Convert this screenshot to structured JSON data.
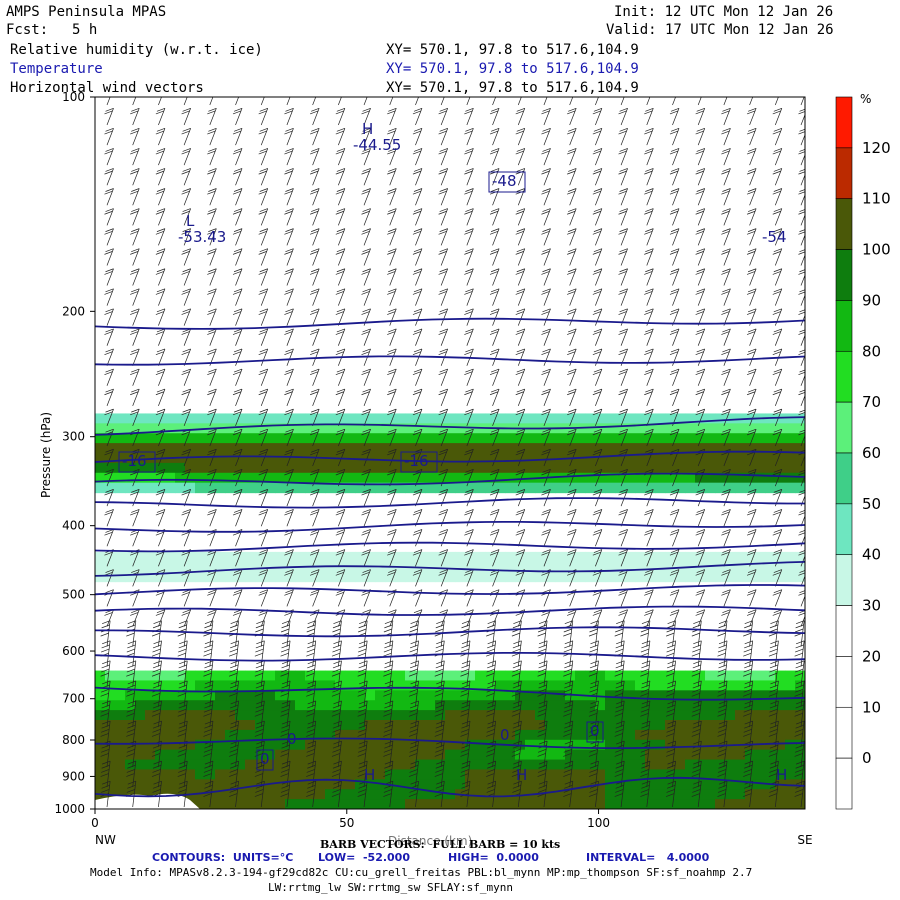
{
  "header": {
    "model": "AMPS Peninsula MPAS",
    "fcst_label": "Fcst:",
    "fcst_value": "5 h",
    "init": "Init: 12 UTC Mon 12 Jan 26",
    "valid": "Valid: 17 UTC Mon 12 Jan 26",
    "fields": [
      {
        "name": "Relative humidity (w.r.t. ice)",
        "xy": "XY= 570.1, 97.8 to 517.6,104.9",
        "color": "#000000"
      },
      {
        "name": "Temperature",
        "xy": "XY= 570.1, 97.8 to 517.6,104.9",
        "color": "#1a1ab0"
      },
      {
        "name": "Horizontal wind vectors",
        "xy": "XY= 570.1, 97.8 to 517.6,104.9",
        "color": "#000000"
      }
    ]
  },
  "chart_data": {
    "type": "heatmap",
    "ylabel": "Pressure (hPa)",
    "xlabel": "Distance (km)",
    "x_ticks": [
      0,
      50,
      100
    ],
    "xlim": [
      0,
      141
    ],
    "y_ticks": [
      100,
      200,
      300,
      400,
      500,
      600,
      700,
      800,
      900,
      1000
    ],
    "ylim": [
      1000,
      100
    ],
    "y_scale": "log",
    "x_end_labels": {
      "left": "NW",
      "right": "SE"
    },
    "colorbar": {
      "unit": "%",
      "ticks": [
        0,
        10,
        20,
        30,
        40,
        50,
        60,
        70,
        80,
        90,
        100,
        110,
        120
      ],
      "levels": [
        {
          "lo": -10,
          "hi": 0,
          "color": "#ffffff"
        },
        {
          "lo": 0,
          "hi": 10,
          "color": "#ffffff"
        },
        {
          "lo": 10,
          "hi": 20,
          "color": "#ffffff"
        },
        {
          "lo": 20,
          "hi": 30,
          "color": "#ffffff"
        },
        {
          "lo": 30,
          "hi": 40,
          "color": "#c8f7e6"
        },
        {
          "lo": 40,
          "hi": 50,
          "color": "#6ee6c0"
        },
        {
          "lo": 50,
          "hi": 60,
          "color": "#3fcf88"
        },
        {
          "lo": 60,
          "hi": 70,
          "color": "#5cf07a"
        },
        {
          "lo": 70,
          "hi": 80,
          "color": "#22dd22"
        },
        {
          "lo": 80,
          "hi": 90,
          "color": "#12b812"
        },
        {
          "lo": 90,
          "hi": 100,
          "color": "#0e7d0e"
        },
        {
          "lo": 100,
          "hi": 110,
          "color": "#4a5808"
        },
        {
          "lo": 110,
          "hi": 120,
          "color": "#bb2a00"
        },
        {
          "lo": 120,
          "hi": 130,
          "color": "#ff1a00"
        }
      ]
    },
    "temperature_contours": [
      {
        "value": -44,
        "p_left": 210,
        "p_right": 205
      },
      {
        "value": -48,
        "p_left": 235,
        "p_right": 233
      },
      {
        "value": -52,
        "p_left": 295,
        "p_right": 285
      },
      {
        "value": -48,
        "p_left": 325,
        "p_right": 318
      },
      {
        "value": -44,
        "p_left": 350,
        "p_right": 340
      },
      {
        "value": -40,
        "p_left": 375,
        "p_right": 368
      },
      {
        "value": -36,
        "p_left": 405,
        "p_right": 396
      },
      {
        "value": -32,
        "p_left": 430,
        "p_right": 425
      },
      {
        "value": -28,
        "p_left": 465,
        "p_right": 455
      },
      {
        "value": -24,
        "p_left": 497,
        "p_right": 490
      },
      {
        "value": -20,
        "p_left": 530,
        "p_right": 525
      },
      {
        "value": -16,
        "p_left": 568,
        "p_right": 560
      },
      {
        "value": -12,
        "p_left": 612,
        "p_right": 610
      },
      {
        "value": -8,
        "p_left": 672,
        "p_right": 698
      },
      {
        "value": -4,
        "p_left": 800,
        "p_right": 816
      },
      {
        "value": 0,
        "p_left": 945,
        "p_right": 920
      }
    ],
    "contour_labels": [
      "-44.55",
      "-48",
      "-53.43",
      "-54",
      "-16",
      "-16",
      "0",
      "0",
      "0",
      "0"
    ],
    "extrema_labels": [
      "H",
      "L",
      "H",
      "H",
      "H"
    ],
    "barb_note": "BARB VECTORS:  FULL BARB = 10 kts",
    "contour_info": {
      "label": "CONTOURS:  UNITS=°C",
      "low": "LOW=  -52.000",
      "high": "HIGH=  0.0000",
      "interval": "INTERVAL=   4.0000"
    }
  },
  "footer": {
    "model_info": "Model Info: MPASv8.2.3-194-gf29cd82c CU:cu_grell_freitas PBL:bl_mynn MP:mp_thompson SF:sf_noahmp 2.7",
    "model_info2": "LW:rrtmg_lw SW:rrtmg_sw SFLAY:sf_mynn"
  }
}
